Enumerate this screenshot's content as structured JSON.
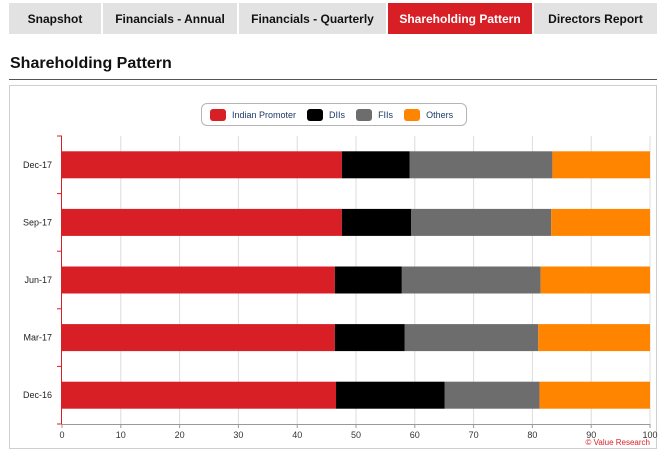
{
  "tabs": [
    {
      "label": "Snapshot",
      "active": false
    },
    {
      "label": "Financials - Annual",
      "active": false
    },
    {
      "label": "Financials - Quarterly",
      "active": false
    },
    {
      "label": "Shareholding Pattern",
      "active": true
    },
    {
      "label": "Directors Report",
      "active": false
    }
  ],
  "page_title": "Shareholding Pattern",
  "credit": "© Value Research",
  "colors": {
    "accent": "#d81f26",
    "tab_bg": "#e2e2e2"
  },
  "chart_data": {
    "type": "bar",
    "orientation": "horizontal",
    "stacked": true,
    "categories": [
      "Dec-17",
      "Sep-17",
      "Jun-17",
      "Mar-17",
      "Dec-16"
    ],
    "series": [
      {
        "name": "Indian Promoter",
        "color": "#d81f26",
        "values": [
          47.6,
          47.6,
          46.4,
          46.4,
          46.6
        ]
      },
      {
        "name": "DIIs",
        "color": "#000000",
        "values": [
          11.5,
          11.8,
          11.4,
          11.9,
          18.5
        ]
      },
      {
        "name": "FIIs",
        "color": "#6d6d6d",
        "values": [
          24.3,
          23.8,
          23.6,
          22.7,
          16.1
        ]
      },
      {
        "name": "Others",
        "color": "#ff8400",
        "values": [
          16.6,
          16.8,
          18.6,
          19.0,
          18.8
        ]
      }
    ],
    "xlim": [
      0,
      100
    ],
    "xticks": [
      0,
      10,
      20,
      30,
      40,
      50,
      60,
      70,
      80,
      90,
      100
    ],
    "grid": true,
    "legend_position": "top-center"
  }
}
